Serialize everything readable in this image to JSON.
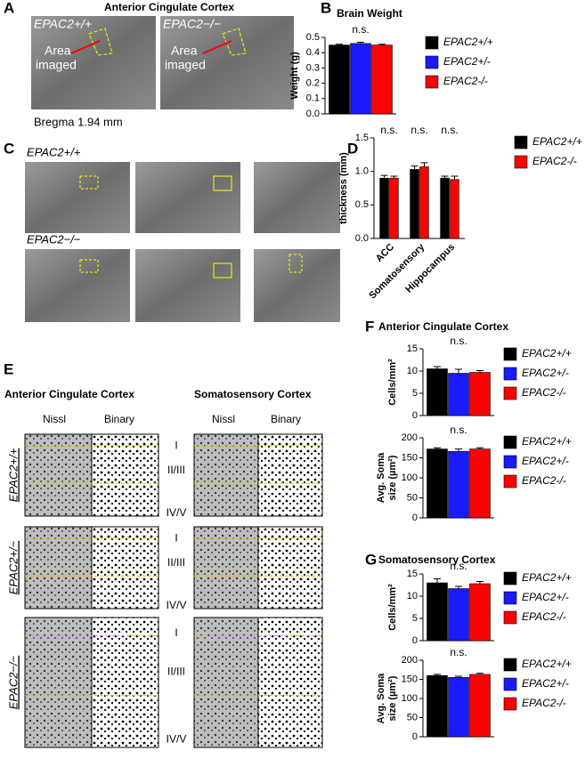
{
  "figure": {
    "letters": [
      "A",
      "B",
      "C",
      "D",
      "E",
      "F",
      "G"
    ],
    "a_title": "Anterior Cingulate Cortex",
    "a_geno": [
      "EPAC2+/+",
      "EPAC2−/−"
    ],
    "a_area": [
      "Area",
      "imaged"
    ],
    "a_bregma": "Bregma 1.94 mm",
    "c_geno": [
      "EPAC2+/+",
      "EPAC2−/−"
    ],
    "e_headers": [
      "Anterior Cingulate Cortex",
      "Somatosensory Cortex"
    ],
    "e_cols": [
      "Nissl",
      "Binary"
    ],
    "e_rows": [
      "EPAC2+/+",
      "EPAC2+/−",
      "EPAC2−/−"
    ],
    "e_layers": [
      "I",
      "II/III",
      "IV/V"
    ],
    "f_title": "Anterior Cingulate Cortex",
    "g_title": "Somatosensory Cortex"
  },
  "chart_data": [
    {
      "type": "bar",
      "title": "Brain Weight",
      "ylabel": [
        "Weight (g)"
      ],
      "ylim": [
        0,
        0.5
      ],
      "yticks": [
        {
          "value": 0,
          "label": "0.0"
        },
        0.1,
        0.2,
        0.3,
        0.4,
        0.5
      ],
      "annotations": [
        "n.s."
      ],
      "series": [
        {
          "name": "EPAC2+/+",
          "color": "#000000",
          "values": [
            0.45
          ],
          "errors": [
            0.005
          ]
        },
        {
          "name": "EPAC2+/-",
          "color": "#1a1aff",
          "values": [
            0.46
          ],
          "errors": [
            0.008
          ]
        },
        {
          "name": "EPAC2-/-",
          "color": "#ff0000",
          "values": [
            0.45
          ],
          "errors": [
            0.005
          ]
        }
      ]
    },
    {
      "type": "bar",
      "ylabel": [
        "thickness (mm)"
      ],
      "categories": [
        "ACC",
        "Somatosensory",
        "Hippocampus"
      ],
      "ylim": [
        0,
        1.5
      ],
      "yticks": [
        {
          "value": 0,
          "label": "0.0"
        },
        0.5,
        {
          "value": 1,
          "label": "1.0"
        },
        1.5
      ],
      "annotations": [
        "n.s.",
        "n.s.",
        "n.s."
      ],
      "series": [
        {
          "name": "EPAC2+/+",
          "color": "#000000",
          "values": [
            0.9,
            1.03,
            0.9
          ],
          "errors": [
            0.04,
            0.05,
            0.03
          ]
        },
        {
          "name": "EPAC2-/-",
          "color": "#ff0000",
          "values": [
            0.9,
            1.07,
            0.88
          ],
          "errors": [
            0.03,
            0.06,
            0.05
          ]
        }
      ]
    },
    {
      "type": "bar",
      "ylabel": [
        "Cells/mm²"
      ],
      "ylim": [
        0,
        15
      ],
      "yticks": [
        0,
        5,
        10,
        15
      ],
      "annotations": [
        "n.s."
      ],
      "series": [
        {
          "name": "EPAC2+/+",
          "color": "#000000",
          "values": [
            10.5
          ],
          "errors": [
            0.5
          ]
        },
        {
          "name": "EPAC2+/-",
          "color": "#1a1aff",
          "values": [
            9.5
          ],
          "errors": [
            0.9
          ]
        },
        {
          "name": "EPAC2-/-",
          "color": "#ff0000",
          "values": [
            9.7
          ],
          "errors": [
            0.4
          ]
        }
      ]
    },
    {
      "type": "bar",
      "ylabel": [
        "Avg. Soma",
        "size (µm²)"
      ],
      "ylim": [
        0,
        200
      ],
      "yticks": [
        0,
        50,
        100,
        150,
        200
      ],
      "annotations": [
        "n.s."
      ],
      "series": [
        {
          "name": "EPAC2+/+",
          "color": "#000000",
          "values": [
            172
          ],
          "errors": [
            3
          ]
        },
        {
          "name": "EPAC2+/-",
          "color": "#1a1aff",
          "values": [
            166
          ],
          "errors": [
            6
          ]
        },
        {
          "name": "EPAC2-/-",
          "color": "#ff0000",
          "values": [
            172
          ],
          "errors": [
            3
          ]
        }
      ]
    },
    {
      "type": "bar",
      "ylabel": [
        "Cells/mm²"
      ],
      "ylim": [
        0,
        15
      ],
      "yticks": [
        0,
        5,
        10,
        15
      ],
      "annotations": [
        "n.s."
      ],
      "series": [
        {
          "name": "EPAC2+/+",
          "color": "#000000",
          "values": [
            13
          ],
          "errors": [
            0.9
          ]
        },
        {
          "name": "EPAC2+/-",
          "color": "#1a1aff",
          "values": [
            11.7
          ],
          "errors": [
            0.5
          ]
        },
        {
          "name": "EPAC2-/-",
          "color": "#ff0000",
          "values": [
            12.8
          ],
          "errors": [
            0.5
          ]
        }
      ]
    },
    {
      "type": "bar",
      "ylabel": [
        "Avg. Soma",
        "size (µm²)"
      ],
      "ylim": [
        0,
        200
      ],
      "yticks": [
        0,
        50,
        100,
        150,
        200
      ],
      "annotations": [
        "n.s."
      ],
      "series": [
        {
          "name": "EPAC2+/+",
          "color": "#000000",
          "values": [
            160
          ],
          "errors": [
            3
          ]
        },
        {
          "name": "EPAC2+/-",
          "color": "#1a1aff",
          "values": [
            155
          ],
          "errors": [
            3
          ]
        },
        {
          "name": "EPAC2-/-",
          "color": "#ff0000",
          "values": [
            163
          ],
          "errors": [
            3
          ]
        }
      ]
    }
  ]
}
